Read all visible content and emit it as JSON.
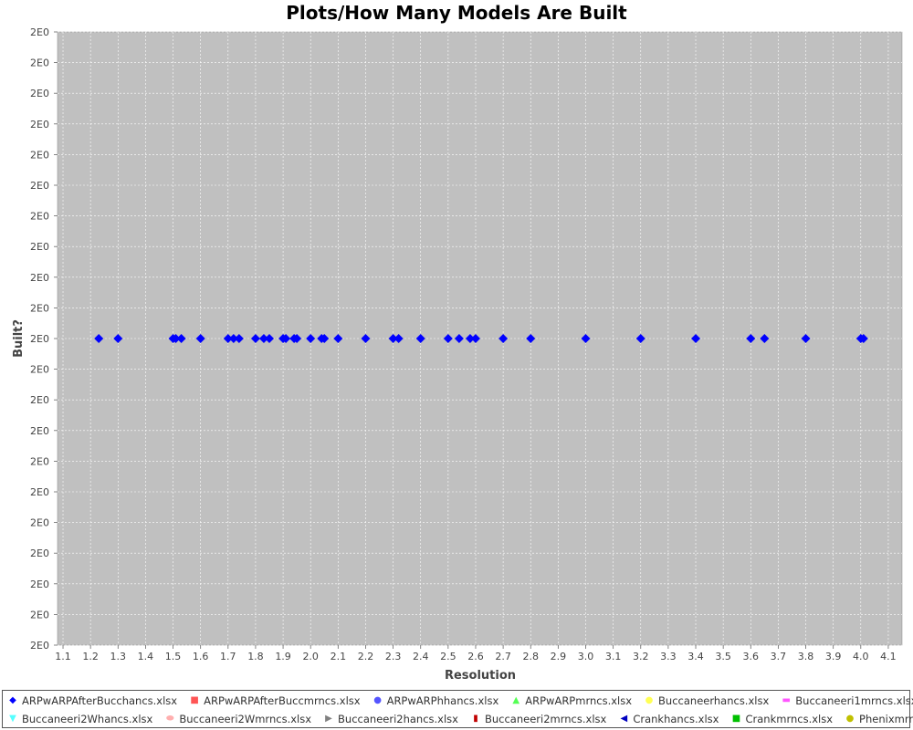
{
  "chart_data": {
    "type": "scatter",
    "title": "Plots/How Many Models Are Built",
    "xlabel": "Resolution",
    "ylabel": "Built?",
    "xlim": [
      1.08,
      4.15
    ],
    "ylim": [
      1.5,
      2.5
    ],
    "x_ticks": [
      "1.1",
      "1.2",
      "1.3",
      "1.4",
      "1.5",
      "1.6",
      "1.7",
      "1.8",
      "1.9",
      "2.0",
      "2.1",
      "2.2",
      "2.3",
      "2.4",
      "2.5",
      "2.6",
      "2.7",
      "2.8",
      "2.9",
      "3.0",
      "3.1",
      "3.2",
      "3.3",
      "3.4",
      "3.5",
      "3.6",
      "3.7",
      "3.8",
      "3.9",
      "4.0",
      "4.1"
    ],
    "y_ticks": [
      "2E0",
      "2E0",
      "2E0",
      "2E0",
      "2E0",
      "2E0",
      "2E0",
      "2E0",
      "2E0",
      "2E0",
      "2E0",
      "2E0",
      "2E0",
      "2E0",
      "2E0",
      "2E0",
      "2E0",
      "2E0",
      "2E0",
      "2E0",
      "2E0"
    ],
    "grid": true,
    "legend_position": "bottom",
    "plot_background": "#c0c0c0",
    "series": [
      {
        "name": "ARPwARPAfterBucchancs.xlsx",
        "color": "#0000ff",
        "marker": "diamond",
        "x": [
          1.23,
          1.3,
          1.5,
          1.51,
          1.53,
          1.6,
          1.7,
          1.72,
          1.74,
          1.8,
          1.83,
          1.85,
          1.9,
          1.91,
          1.94,
          1.95,
          2.0,
          2.04,
          2.05,
          2.1,
          2.2,
          2.3,
          2.32,
          2.4,
          2.5,
          2.54,
          2.58,
          2.6,
          2.7,
          2.8,
          3.0,
          3.2,
          3.4,
          3.6,
          3.65,
          3.8,
          4.0,
          4.01
        ],
        "y": [
          2,
          2,
          2,
          2,
          2,
          2,
          2,
          2,
          2,
          2,
          2,
          2,
          2,
          2,
          2,
          2,
          2,
          2,
          2,
          2,
          2,
          2,
          2,
          2,
          2,
          2,
          2,
          2,
          2,
          2,
          2,
          2,
          2,
          2,
          2,
          2,
          2,
          2
        ]
      },
      {
        "name": "ARPwARPAfterBuccmrncs.xlsx",
        "color": "#ff5555",
        "marker": "square",
        "x": [],
        "y": []
      },
      {
        "name": "ARPwARPhhancs.xlsx",
        "color": "#5555ff",
        "marker": "circle",
        "x": [],
        "y": []
      },
      {
        "name": "ARPwARPmrncs.xlsx",
        "color": "#55ff55",
        "marker": "triangle-up",
        "x": [],
        "y": []
      },
      {
        "name": "Buccaneerhancs.xlsx",
        "color": "#ffff55",
        "marker": "ellipse",
        "x": [],
        "y": []
      },
      {
        "name": "Buccaneeri1mrncs.xlsx",
        "color": "#ff55ff",
        "marker": "rect-h",
        "x": [],
        "y": []
      },
      {
        "name": "Buccaneeri2Whancs.xlsx",
        "color": "#55ffff",
        "marker": "triangle-down",
        "x": [],
        "y": []
      },
      {
        "name": "Buccaneeri2Wmrncs.xlsx",
        "color": "#ffafaf",
        "marker": "ellipse-h",
        "x": [],
        "y": []
      },
      {
        "name": "Buccaneeri2hancs.xlsx",
        "color": "#808080",
        "marker": "triangle-right",
        "x": [],
        "y": []
      },
      {
        "name": "Buccaneeri2mrncs.xlsx",
        "color": "#c00000",
        "marker": "rect-v",
        "x": [],
        "y": []
      },
      {
        "name": "Crankhancs.xlsx",
        "color": "#0000c0",
        "marker": "triangle-left",
        "x": [],
        "y": []
      },
      {
        "name": "Crankmrncs.xlsx",
        "color": "#00c000",
        "marker": "square",
        "x": [],
        "y": []
      },
      {
        "name": "Phenixmrncs.xlsx",
        "color": "#c0c000",
        "marker": "circle",
        "x": [],
        "y": []
      }
    ]
  }
}
